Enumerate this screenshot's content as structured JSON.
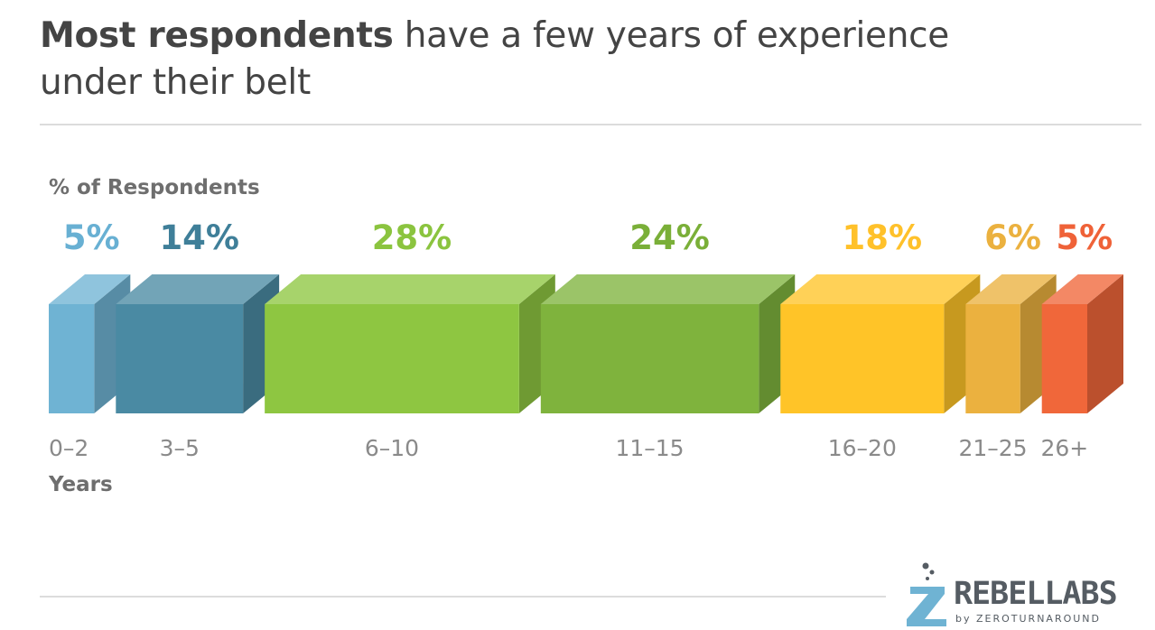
{
  "title": {
    "bold": "Most respondents",
    "rest": " have a few years of experience under their belt"
  },
  "chart_data": {
    "type": "bar",
    "title": "Most respondents have a few years of experience under their belt",
    "ylabel": "% of Respondents",
    "xlabel": "Years",
    "categories": [
      "0–2",
      "3–5",
      "6–10",
      "11–15",
      "16–20",
      "21–25",
      "26+"
    ],
    "values": [
      5,
      14,
      28,
      24,
      18,
      6,
      5
    ],
    "labels": [
      "5%",
      "14%",
      "28%",
      "24%",
      "18%",
      "6%",
      "5%"
    ],
    "colors": [
      "#6fb3d3",
      "#4a8aa3",
      "#8ec641",
      "#7fb33d",
      "#ffc428",
      "#ebb13f",
      "#f0673a"
    ],
    "label_colors": [
      "#68b0d3",
      "#3f7f99",
      "#8bc43f",
      "#7aaf38",
      "#ffc12a",
      "#ebb13f",
      "#ef6238"
    ],
    "encoding": "bar width proportional to value"
  },
  "logo": {
    "main": "REBELLABS",
    "sub": "by ZEROTURNAROUND"
  }
}
